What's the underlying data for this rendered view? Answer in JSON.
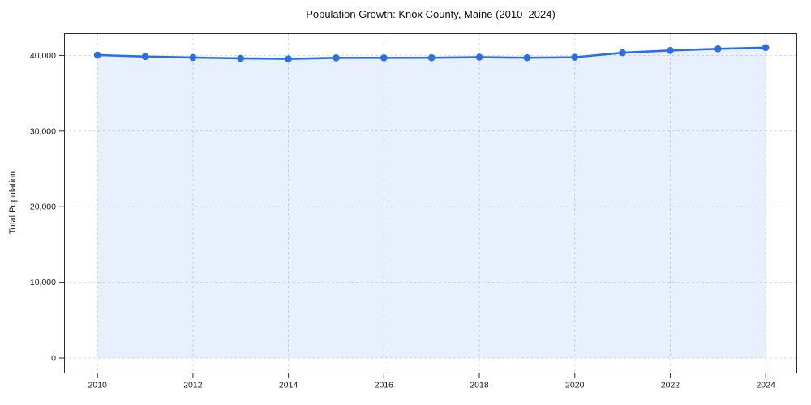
{
  "chart_data": {
    "type": "area",
    "title": "Population Growth: Knox County, Maine (2010–2024)",
    "xlabel": "",
    "ylabel": "Total Population",
    "x": [
      2010,
      2011,
      2012,
      2013,
      2014,
      2015,
      2016,
      2017,
      2018,
      2019,
      2020,
      2021,
      2022,
      2023,
      2024
    ],
    "series": [
      {
        "name": "Total Population",
        "values": [
          40050,
          39850,
          39720,
          39620,
          39550,
          39680,
          39680,
          39700,
          39770,
          39700,
          39760,
          40350,
          40650,
          40860,
          41030
        ]
      }
    ],
    "xticks": [
      2010,
      2012,
      2014,
      2016,
      2018,
      2020,
      2022,
      2024
    ],
    "yticks": [
      0,
      10000,
      20000,
      30000,
      40000
    ],
    "xlim": [
      2009.3,
      2024.66
    ],
    "ylim": [
      -2030,
      42930
    ],
    "grid": true,
    "grid_style": "dashed",
    "legend": "none",
    "marker": "circle",
    "colors": {
      "line": "#2970e8",
      "fill": "rgba(41, 112, 232, 0.10)",
      "grid": "#d9d9d9",
      "spine": "#2b2b2b",
      "tick_text": "#1a1a1a",
      "title_text": "#111111",
      "background": "#ffffff"
    }
  }
}
